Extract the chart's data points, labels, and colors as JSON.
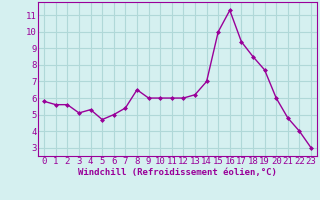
{
  "x": [
    0,
    1,
    2,
    3,
    4,
    5,
    6,
    7,
    8,
    9,
    10,
    11,
    12,
    13,
    14,
    15,
    16,
    17,
    18,
    19,
    20,
    21,
    22,
    23
  ],
  "y": [
    5.8,
    5.6,
    5.6,
    5.1,
    5.3,
    4.7,
    5.0,
    5.4,
    6.5,
    6.0,
    6.0,
    6.0,
    6.0,
    6.2,
    7.0,
    10.0,
    11.3,
    9.4,
    8.5,
    7.7,
    6.0,
    4.8,
    4.0,
    3.0
  ],
  "line_color": "#990099",
  "marker": "D",
  "marker_size": 2.0,
  "linewidth": 1.0,
  "bg_color": "#d5f0f0",
  "grid_color": "#b0d8d8",
  "xlabel": "Windchill (Refroidissement éolien,°C)",
  "xlabel_color": "#990099",
  "tick_color": "#990099",
  "ylim": [
    2.5,
    11.8
  ],
  "yticks": [
    3,
    4,
    5,
    6,
    7,
    8,
    9,
    10,
    11
  ],
  "xticks": [
    0,
    1,
    2,
    3,
    4,
    5,
    6,
    7,
    8,
    9,
    10,
    11,
    12,
    13,
    14,
    15,
    16,
    17,
    18,
    19,
    20,
    21,
    22,
    23
  ],
  "xlabel_fontsize": 6.5,
  "tick_fontsize": 6.5
}
